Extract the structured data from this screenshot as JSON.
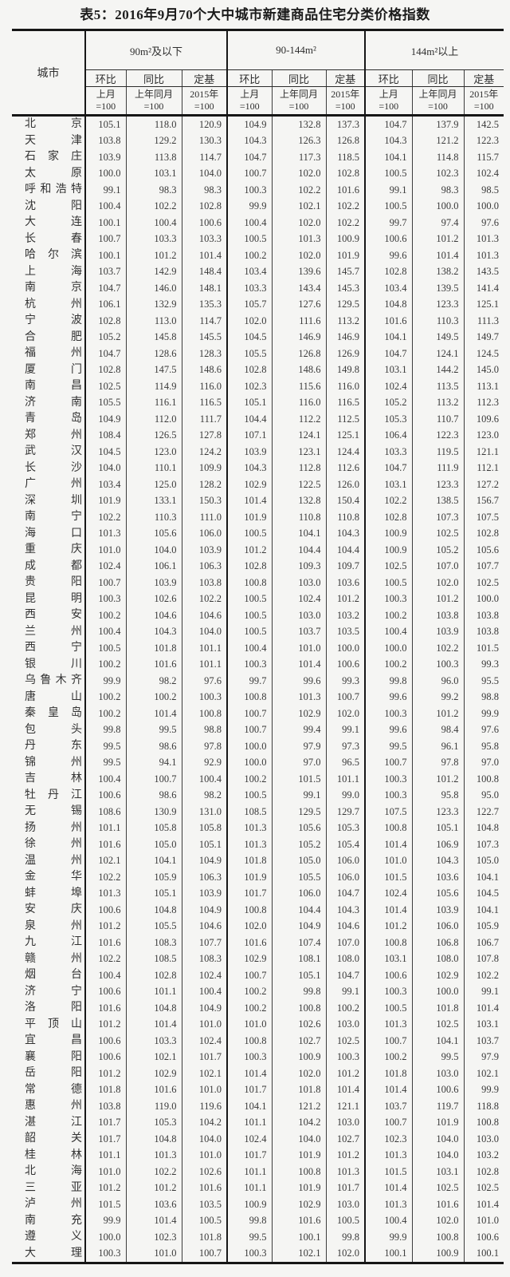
{
  "title": "表5：2016年9月70个大中城市新建商品住宅分类价格指数",
  "table": {
    "city_header": "城市",
    "groups": [
      {
        "label": "90m²及以下"
      },
      {
        "label": "90-144m²"
      },
      {
        "label": "144m²以上"
      }
    ],
    "metric_headers": [
      "环比",
      "同比",
      "定基"
    ],
    "base_headers": [
      "上月\n=100",
      "上年同月\n=100",
      "2015年\n=100"
    ],
    "rows": [
      {
        "city": "北京",
        "values": [
          "105.1",
          "118.0",
          "120.9",
          "104.9",
          "132.8",
          "137.3",
          "104.7",
          "137.9",
          "142.5"
        ]
      },
      {
        "city": "天津",
        "values": [
          "103.8",
          "129.2",
          "130.3",
          "104.3",
          "126.3",
          "126.8",
          "104.3",
          "121.2",
          "122.3"
        ]
      },
      {
        "city": "石家庄",
        "values": [
          "103.9",
          "113.8",
          "114.7",
          "104.7",
          "117.3",
          "118.5",
          "104.1",
          "114.8",
          "115.7"
        ]
      },
      {
        "city": "太原",
        "values": [
          "100.0",
          "103.1",
          "104.0",
          "100.7",
          "102.0",
          "102.8",
          "100.5",
          "102.3",
          "102.4"
        ]
      },
      {
        "city": "呼和浩特",
        "values": [
          "99.1",
          "98.3",
          "98.3",
          "100.3",
          "102.2",
          "101.6",
          "99.1",
          "98.3",
          "98.5"
        ]
      },
      {
        "city": "沈阳",
        "values": [
          "100.4",
          "102.2",
          "102.8",
          "99.9",
          "102.1",
          "102.2",
          "100.5",
          "100.0",
          "100.0"
        ]
      },
      {
        "city": "大连",
        "values": [
          "100.1",
          "100.4",
          "100.6",
          "100.4",
          "102.0",
          "102.2",
          "99.7",
          "97.4",
          "97.6"
        ]
      },
      {
        "city": "长春",
        "values": [
          "100.7",
          "103.3",
          "103.3",
          "100.5",
          "101.3",
          "100.9",
          "100.6",
          "101.2",
          "101.3"
        ]
      },
      {
        "city": "哈尔滨",
        "values": [
          "100.1",
          "101.2",
          "101.4",
          "100.2",
          "102.0",
          "101.9",
          "99.6",
          "101.4",
          "101.3"
        ]
      },
      {
        "city": "上海",
        "values": [
          "103.7",
          "142.9",
          "148.4",
          "103.4",
          "139.6",
          "145.7",
          "102.8",
          "138.2",
          "143.5"
        ]
      },
      {
        "city": "南京",
        "values": [
          "104.7",
          "146.0",
          "148.1",
          "103.3",
          "143.4",
          "145.3",
          "103.4",
          "139.5",
          "141.4"
        ]
      },
      {
        "city": "杭州",
        "values": [
          "106.1",
          "132.9",
          "135.3",
          "105.7",
          "127.6",
          "129.5",
          "104.8",
          "123.3",
          "125.1"
        ]
      },
      {
        "city": "宁波",
        "values": [
          "102.8",
          "113.0",
          "114.7",
          "102.0",
          "111.6",
          "113.2",
          "101.6",
          "110.3",
          "111.3"
        ]
      },
      {
        "city": "合肥",
        "values": [
          "105.2",
          "145.8",
          "145.5",
          "104.5",
          "146.9",
          "146.9",
          "104.1",
          "149.5",
          "149.7"
        ]
      },
      {
        "city": "福州",
        "values": [
          "104.7",
          "128.6",
          "128.3",
          "105.5",
          "126.8",
          "126.9",
          "104.7",
          "124.1",
          "124.5"
        ]
      },
      {
        "city": "厦门",
        "values": [
          "102.8",
          "147.5",
          "148.6",
          "102.8",
          "148.6",
          "149.8",
          "103.1",
          "144.2",
          "145.0"
        ]
      },
      {
        "city": "南昌",
        "values": [
          "102.5",
          "114.9",
          "116.0",
          "102.3",
          "115.6",
          "116.0",
          "102.4",
          "113.5",
          "113.1"
        ]
      },
      {
        "city": "济南",
        "values": [
          "105.5",
          "116.1",
          "116.5",
          "105.1",
          "116.0",
          "116.5",
          "105.2",
          "113.2",
          "112.3"
        ]
      },
      {
        "city": "青岛",
        "values": [
          "104.9",
          "112.0",
          "111.7",
          "104.4",
          "112.2",
          "112.5",
          "105.3",
          "110.7",
          "109.6"
        ]
      },
      {
        "city": "郑州",
        "values": [
          "108.4",
          "126.5",
          "127.8",
          "107.1",
          "124.1",
          "125.1",
          "106.4",
          "122.3",
          "123.0"
        ]
      },
      {
        "city": "武汉",
        "values": [
          "104.5",
          "123.0",
          "124.2",
          "103.9",
          "123.1",
          "124.4",
          "103.3",
          "119.5",
          "121.1"
        ]
      },
      {
        "city": "长沙",
        "values": [
          "104.0",
          "110.1",
          "109.9",
          "104.3",
          "112.8",
          "112.6",
          "104.7",
          "111.9",
          "112.1"
        ]
      },
      {
        "city": "广州",
        "values": [
          "103.4",
          "125.0",
          "128.2",
          "102.9",
          "122.5",
          "126.0",
          "103.1",
          "123.3",
          "127.2"
        ]
      },
      {
        "city": "深圳",
        "values": [
          "101.9",
          "133.1",
          "150.3",
          "101.4",
          "132.8",
          "150.4",
          "102.2",
          "138.5",
          "156.7"
        ]
      },
      {
        "city": "南宁",
        "values": [
          "102.2",
          "110.3",
          "111.0",
          "101.9",
          "110.8",
          "110.8",
          "102.8",
          "107.3",
          "107.5"
        ]
      },
      {
        "city": "海口",
        "values": [
          "101.3",
          "105.6",
          "106.0",
          "100.5",
          "104.1",
          "104.3",
          "100.9",
          "102.5",
          "102.8"
        ]
      },
      {
        "city": "重庆",
        "values": [
          "101.0",
          "104.0",
          "103.9",
          "101.2",
          "104.4",
          "104.4",
          "100.9",
          "105.2",
          "105.6"
        ]
      },
      {
        "city": "成都",
        "values": [
          "102.4",
          "106.1",
          "106.3",
          "102.8",
          "109.3",
          "109.7",
          "102.5",
          "107.0",
          "107.7"
        ]
      },
      {
        "city": "贵阳",
        "values": [
          "100.7",
          "103.9",
          "103.8",
          "100.8",
          "103.0",
          "103.6",
          "100.5",
          "102.0",
          "102.5"
        ]
      },
      {
        "city": "昆明",
        "values": [
          "100.3",
          "102.6",
          "102.2",
          "100.5",
          "102.4",
          "101.2",
          "100.3",
          "101.2",
          "100.0"
        ]
      },
      {
        "city": "西安",
        "values": [
          "100.2",
          "104.6",
          "104.6",
          "100.5",
          "103.0",
          "103.2",
          "100.2",
          "103.8",
          "103.8"
        ]
      },
      {
        "city": "兰州",
        "values": [
          "100.4",
          "104.3",
          "104.0",
          "100.5",
          "103.7",
          "103.5",
          "100.4",
          "103.9",
          "103.8"
        ]
      },
      {
        "city": "西宁",
        "values": [
          "100.5",
          "101.8",
          "101.1",
          "100.4",
          "101.0",
          "100.0",
          "100.0",
          "102.2",
          "101.5"
        ]
      },
      {
        "city": "银川",
        "values": [
          "100.2",
          "101.6",
          "101.1",
          "100.3",
          "101.4",
          "100.6",
          "100.2",
          "100.3",
          "99.3"
        ]
      },
      {
        "city": "乌鲁木齐",
        "values": [
          "99.9",
          "98.2",
          "97.6",
          "99.7",
          "99.6",
          "99.3",
          "99.8",
          "96.0",
          "95.5"
        ]
      },
      {
        "city": "唐山",
        "values": [
          "100.2",
          "100.2",
          "100.3",
          "100.8",
          "101.3",
          "100.7",
          "99.6",
          "99.2",
          "98.8"
        ]
      },
      {
        "city": "秦皇岛",
        "values": [
          "100.2",
          "101.4",
          "100.8",
          "100.7",
          "102.9",
          "102.0",
          "100.3",
          "101.2",
          "99.9"
        ]
      },
      {
        "city": "包头",
        "values": [
          "99.8",
          "99.5",
          "98.8",
          "100.7",
          "99.4",
          "99.1",
          "99.6",
          "98.4",
          "97.6"
        ]
      },
      {
        "city": "丹东",
        "values": [
          "99.5",
          "98.6",
          "97.8",
          "100.0",
          "97.9",
          "97.3",
          "99.5",
          "96.1",
          "95.8"
        ]
      },
      {
        "city": "锦州",
        "values": [
          "99.5",
          "94.1",
          "92.9",
          "100.0",
          "97.0",
          "96.5",
          "100.7",
          "97.8",
          "97.0"
        ]
      },
      {
        "city": "吉林",
        "values": [
          "100.4",
          "100.7",
          "100.4",
          "100.2",
          "101.5",
          "101.1",
          "100.3",
          "101.2",
          "100.8"
        ]
      },
      {
        "city": "牡丹江",
        "values": [
          "100.6",
          "98.6",
          "98.2",
          "100.5",
          "99.1",
          "99.0",
          "100.3",
          "95.8",
          "95.0"
        ]
      },
      {
        "city": "无锡",
        "values": [
          "108.6",
          "130.9",
          "131.0",
          "108.5",
          "129.5",
          "129.7",
          "107.5",
          "123.3",
          "122.7"
        ]
      },
      {
        "city": "扬州",
        "values": [
          "101.1",
          "105.8",
          "105.8",
          "101.3",
          "105.6",
          "105.3",
          "100.8",
          "105.1",
          "104.8"
        ]
      },
      {
        "city": "徐州",
        "values": [
          "101.6",
          "105.0",
          "105.1",
          "101.3",
          "105.2",
          "105.4",
          "101.4",
          "106.9",
          "107.3"
        ]
      },
      {
        "city": "温州",
        "values": [
          "102.1",
          "104.1",
          "104.9",
          "101.8",
          "105.0",
          "106.0",
          "101.0",
          "104.3",
          "105.0"
        ]
      },
      {
        "city": "金华",
        "values": [
          "102.2",
          "105.9",
          "106.3",
          "101.9",
          "105.5",
          "106.0",
          "101.5",
          "103.6",
          "104.1"
        ]
      },
      {
        "city": "蚌埠",
        "values": [
          "101.3",
          "105.1",
          "103.9",
          "101.7",
          "106.0",
          "104.7",
          "102.4",
          "105.6",
          "104.5"
        ]
      },
      {
        "city": "安庆",
        "values": [
          "100.6",
          "104.8",
          "104.9",
          "100.8",
          "104.4",
          "104.3",
          "101.4",
          "103.9",
          "104.1"
        ]
      },
      {
        "city": "泉州",
        "values": [
          "101.2",
          "105.5",
          "104.6",
          "102.0",
          "104.9",
          "104.6",
          "101.2",
          "106.0",
          "105.9"
        ]
      },
      {
        "city": "九江",
        "values": [
          "101.6",
          "108.3",
          "107.7",
          "101.6",
          "107.4",
          "107.0",
          "100.8",
          "106.8",
          "106.7"
        ]
      },
      {
        "city": "赣州",
        "values": [
          "102.2",
          "108.5",
          "108.3",
          "102.9",
          "108.1",
          "108.0",
          "103.1",
          "108.0",
          "107.8"
        ]
      },
      {
        "city": "烟台",
        "values": [
          "100.4",
          "102.8",
          "102.4",
          "100.7",
          "105.1",
          "104.7",
          "100.6",
          "102.9",
          "102.2"
        ]
      },
      {
        "city": "济宁",
        "values": [
          "100.6",
          "101.1",
          "100.4",
          "100.2",
          "99.8",
          "99.1",
          "100.3",
          "100.0",
          "99.1"
        ]
      },
      {
        "city": "洛阳",
        "values": [
          "101.6",
          "104.8",
          "104.9",
          "100.2",
          "100.8",
          "100.2",
          "100.5",
          "101.8",
          "101.4"
        ]
      },
      {
        "city": "平顶山",
        "values": [
          "101.2",
          "101.4",
          "101.0",
          "101.0",
          "102.6",
          "103.0",
          "101.3",
          "102.5",
          "103.1"
        ]
      },
      {
        "city": "宜昌",
        "values": [
          "100.6",
          "103.3",
          "102.4",
          "100.8",
          "102.7",
          "102.5",
          "100.7",
          "104.1",
          "103.7"
        ]
      },
      {
        "city": "襄阳",
        "values": [
          "100.6",
          "102.1",
          "101.7",
          "100.3",
          "100.9",
          "100.3",
          "100.2",
          "99.5",
          "97.9"
        ]
      },
      {
        "city": "岳阳",
        "values": [
          "101.2",
          "102.9",
          "102.1",
          "101.4",
          "102.0",
          "101.2",
          "101.8",
          "103.0",
          "102.1"
        ]
      },
      {
        "city": "常德",
        "values": [
          "101.8",
          "101.6",
          "101.0",
          "101.7",
          "101.8",
          "101.4",
          "101.4",
          "100.6",
          "99.9"
        ]
      },
      {
        "city": "惠州",
        "values": [
          "103.8",
          "119.0",
          "119.6",
          "104.1",
          "121.2",
          "121.1",
          "103.7",
          "119.7",
          "118.8"
        ]
      },
      {
        "city": "湛江",
        "values": [
          "101.7",
          "105.3",
          "104.2",
          "101.1",
          "104.2",
          "103.0",
          "100.7",
          "101.9",
          "100.8"
        ]
      },
      {
        "city": "韶关",
        "values": [
          "101.7",
          "104.8",
          "104.0",
          "102.4",
          "104.0",
          "102.7",
          "102.3",
          "104.0",
          "103.0"
        ]
      },
      {
        "city": "桂林",
        "values": [
          "101.1",
          "101.3",
          "101.0",
          "101.7",
          "101.9",
          "101.2",
          "101.3",
          "104.0",
          "103.2"
        ]
      },
      {
        "city": "北海",
        "values": [
          "101.0",
          "102.2",
          "102.6",
          "101.1",
          "100.8",
          "101.3",
          "101.5",
          "103.1",
          "102.8"
        ]
      },
      {
        "city": "三亚",
        "values": [
          "101.2",
          "101.2",
          "101.6",
          "101.1",
          "101.9",
          "101.7",
          "101.4",
          "102.5",
          "102.5"
        ]
      },
      {
        "city": "泸州",
        "values": [
          "101.5",
          "103.6",
          "103.5",
          "100.9",
          "102.9",
          "103.0",
          "101.3",
          "101.6",
          "101.4"
        ]
      },
      {
        "city": "南充",
        "values": [
          "99.9",
          "101.4",
          "100.5",
          "99.8",
          "101.6",
          "100.5",
          "100.4",
          "102.0",
          "101.0"
        ]
      },
      {
        "city": "遵义",
        "values": [
          "100.0",
          "102.3",
          "101.8",
          "99.5",
          "100.1",
          "99.8",
          "99.9",
          "100.8",
          "100.6"
        ]
      },
      {
        "city": "大理",
        "values": [
          "100.3",
          "101.0",
          "100.7",
          "100.3",
          "102.1",
          "102.0",
          "100.1",
          "100.9",
          "100.1"
        ]
      }
    ]
  }
}
